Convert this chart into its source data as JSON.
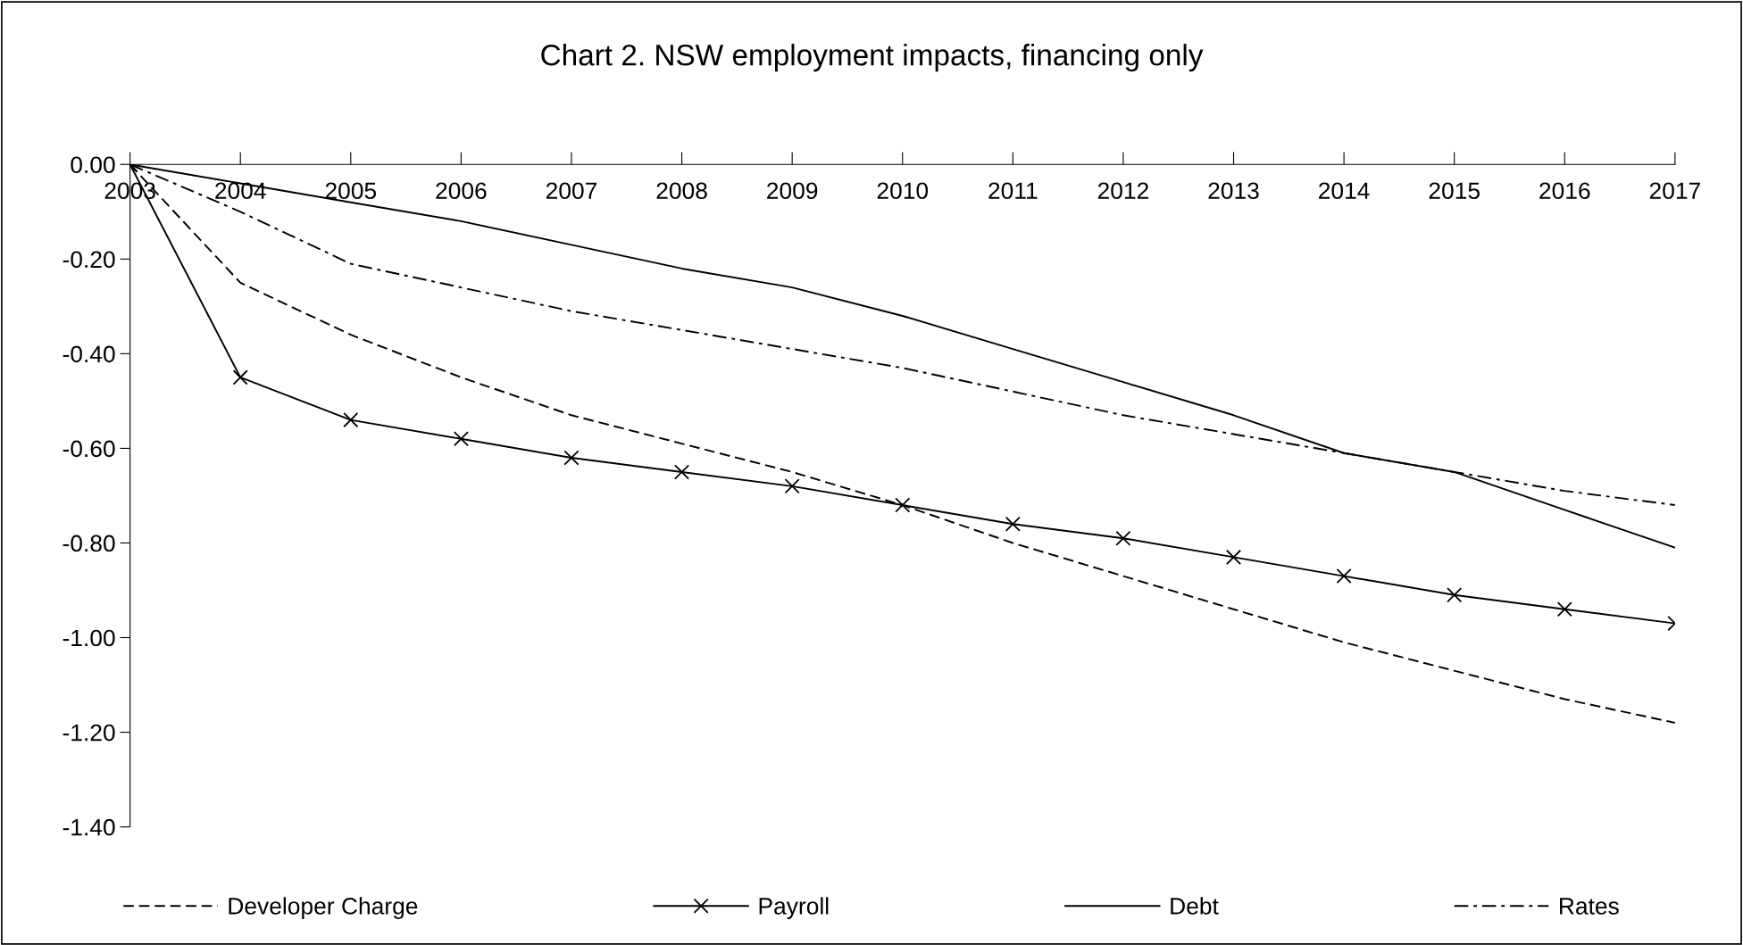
{
  "chart_data": {
    "type": "line",
    "title": "Chart 2. NSW employment impacts, financing only",
    "x": [
      2003,
      2004,
      2005,
      2006,
      2007,
      2008,
      2009,
      2010,
      2011,
      2012,
      2013,
      2014,
      2015,
      2016,
      2017
    ],
    "xlim": [
      2003,
      2017
    ],
    "xticks": [
      2003,
      2004,
      2005,
      2006,
      2007,
      2008,
      2009,
      2010,
      2011,
      2012,
      2013,
      2014,
      2015,
      2016,
      2017
    ],
    "ylim": [
      -1.4,
      0
    ],
    "yticks": [
      {
        "value": -1.4,
        "label": "-1.40"
      },
      {
        "value": -1.2,
        "label": "-1.20"
      },
      {
        "value": -1.0,
        "label": "-1.00"
      },
      {
        "value": -0.8,
        "label": "-0.80"
      },
      {
        "value": -0.6,
        "label": "-0.60"
      },
      {
        "value": -0.4,
        "label": "-0.40"
      },
      {
        "value": -0.2,
        "label": "-0.20"
      },
      {
        "value": 0,
        "label": "0.00"
      }
    ],
    "grid": false,
    "legend": "bottom",
    "series": [
      {
        "name": "Developer Charge",
        "color": "#000000",
        "line_style": "dashed",
        "marker": "none",
        "values": [
          0,
          -0.25,
          -0.36,
          -0.45,
          -0.53,
          -0.59,
          -0.65,
          -0.72,
          -0.8,
          -0.87,
          -0.94,
          -1.01,
          -1.07,
          -1.13,
          -1.18
        ]
      },
      {
        "name": "Payroll",
        "color": "#000000",
        "line_style": "solid",
        "marker": "cross",
        "values": [
          0,
          -0.45,
          -0.54,
          -0.58,
          -0.62,
          -0.65,
          -0.68,
          -0.72,
          -0.76,
          -0.79,
          -0.83,
          -0.87,
          -0.91,
          -0.94,
          -0.97
        ]
      },
      {
        "name": "Debt",
        "color": "#000000",
        "line_style": "solid",
        "marker": "none",
        "values": [
          0,
          -0.04,
          -0.08,
          -0.12,
          -0.17,
          -0.22,
          -0.26,
          -0.32,
          -0.39,
          -0.46,
          -0.53,
          -0.61,
          -0.65,
          -0.73,
          -0.81
        ]
      },
      {
        "name": "Rates",
        "color": "#000000",
        "line_style": "dashdot",
        "marker": "none",
        "values": [
          0,
          -0.1,
          -0.21,
          -0.26,
          -0.31,
          -0.35,
          -0.39,
          -0.43,
          -0.48,
          -0.53,
          -0.57,
          -0.61,
          -0.65,
          -0.69,
          -0.72
        ]
      }
    ]
  }
}
